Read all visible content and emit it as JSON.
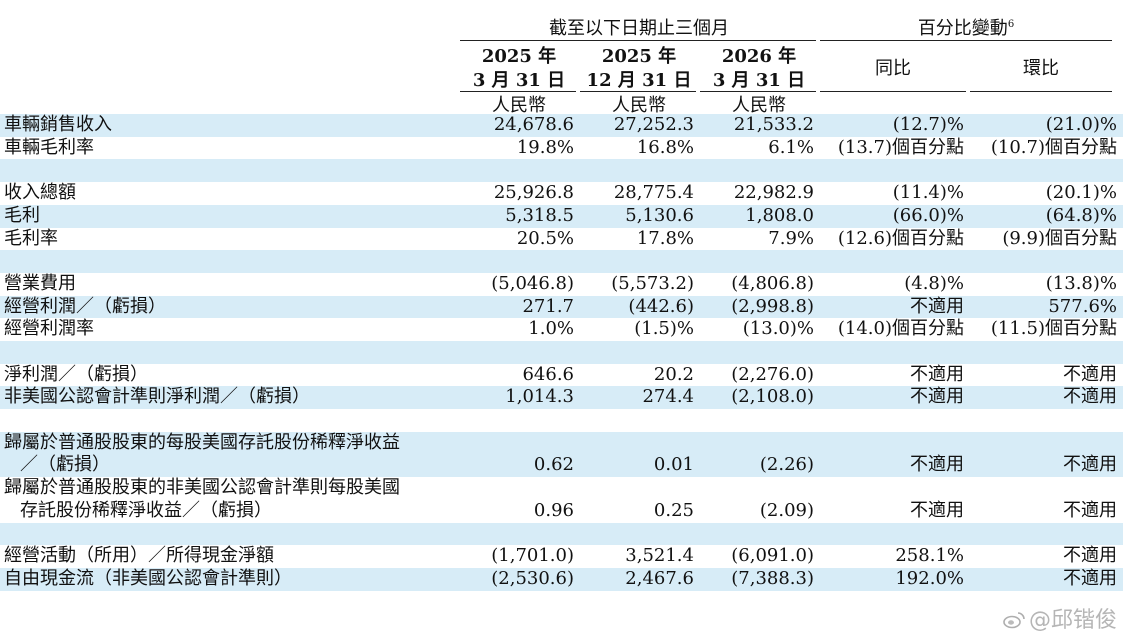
{
  "header": {
    "period_group": "截至以下日期止三個月",
    "change_group": "百分比變動",
    "change_footnote": "6",
    "columns": [
      {
        "year": "2025 年",
        "date": "3 月 31 日",
        "currency": "人民幣"
      },
      {
        "year": "2025 年",
        "date": "12 月 31 日",
        "currency": "人民幣"
      },
      {
        "year": "2026 年",
        "date": "3 月 31 日",
        "currency": "人民幣"
      }
    ],
    "yoy": "同比",
    "qoq": "環比"
  },
  "rows": [
    {
      "label": "車輛銷售收入",
      "v": [
        "24,678.6",
        "27,252.3",
        "21,533.2"
      ],
      "yoy": "(12.7)%",
      "qoq": "(21.0)%"
    },
    {
      "label": "車輛毛利率",
      "v": [
        "19.8%",
        "16.8%",
        "6.1%"
      ],
      "yoy": "(13.7)個百分點",
      "qoq": "(10.7)個百分點"
    },
    {
      "label": "收入總額",
      "v": [
        "25,926.8",
        "28,775.4",
        "22,982.9"
      ],
      "yoy": "(11.4)%",
      "qoq": "(20.1)%"
    },
    {
      "label": "毛利",
      "v": [
        "5,318.5",
        "5,130.6",
        "1,808.0"
      ],
      "yoy": "(66.0)%",
      "qoq": "(64.8)%"
    },
    {
      "label": "毛利率",
      "v": [
        "20.5%",
        "17.8%",
        "7.9%"
      ],
      "yoy": "(12.6)個百分點",
      "qoq": "(9.9)個百分點"
    },
    {
      "label": "營業費用",
      "v": [
        "(5,046.8)",
        "(5,573.2)",
        "(4,806.8)"
      ],
      "yoy": "(4.8)%",
      "qoq": "(13.8)%"
    },
    {
      "label": "經營利潤／（虧損）",
      "v": [
        "271.7",
        "(442.6)",
        "(2,998.8)"
      ],
      "yoy": "不適用",
      "qoq": "577.6%"
    },
    {
      "label": "經營利潤率",
      "v": [
        "1.0%",
        "(1.5)%",
        "(13.0)%"
      ],
      "yoy": "(14.0)個百分點",
      "qoq": "(11.5)個百分點"
    },
    {
      "label": "淨利潤／（虧損）",
      "v": [
        "646.6",
        "20.2",
        "(2,276.0)"
      ],
      "yoy": "不適用",
      "qoq": "不適用"
    },
    {
      "label": "非美國公認會計準則淨利潤／（虧損）",
      "v": [
        "1,014.3",
        "274.4",
        "(2,108.0)"
      ],
      "yoy": "不適用",
      "qoq": "不適用"
    },
    {
      "label1": "歸屬於普通股股東的每股美國存託股份稀釋淨收益",
      "label2": "／（虧損）",
      "v": [
        "0.62",
        "0.01",
        "(2.26)"
      ],
      "yoy": "不適用",
      "qoq": "不適用"
    },
    {
      "label1": "歸屬於普通股股東的非美國公認會計準則每股美國",
      "label2": "存託股份稀釋淨收益／（虧損）",
      "v": [
        "0.96",
        "0.25",
        "(2.09)"
      ],
      "yoy": "不適用",
      "qoq": "不適用"
    },
    {
      "label": "經營活動（所用）／所得現金淨額",
      "v": [
        "(1,701.0)",
        "3,521.4",
        "(6,091.0)"
      ],
      "yoy": "258.1%",
      "qoq": "不適用"
    },
    {
      "label": "自由現金流（非美國公認會計準則）",
      "v": [
        "(2,530.6)",
        "2,467.6",
        "(7,388.3)"
      ],
      "yoy": "192.0%",
      "qoq": "不適用"
    }
  ],
  "watermark": "@邱锴俊"
}
